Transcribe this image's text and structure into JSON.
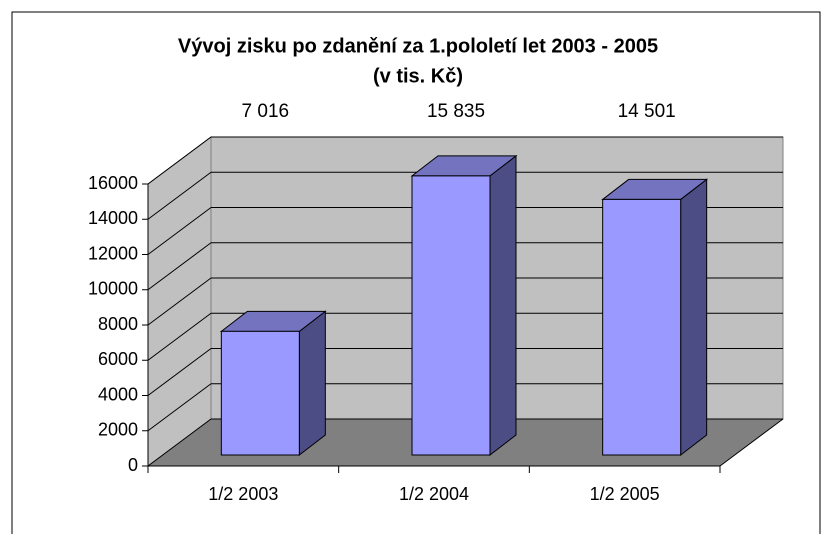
{
  "chart_data": {
    "type": "bar3d",
    "title": "Vývoj zisku po zdanění za 1.pololetí let 2003 - 2005",
    "subtitle": "(v tis. Kč)",
    "categories": [
      "1/2 2003",
      "1/2 2004",
      "1/2 2005"
    ],
    "values": [
      7016,
      15835,
      14501
    ],
    "value_labels": [
      "7 016",
      "15 835",
      "14 501"
    ],
    "color": "#9999ff",
    "ylim": [
      0,
      16000
    ],
    "yticks": [
      0,
      2000,
      4000,
      6000,
      8000,
      10000,
      12000,
      14000,
      16000
    ],
    "grid": true
  }
}
